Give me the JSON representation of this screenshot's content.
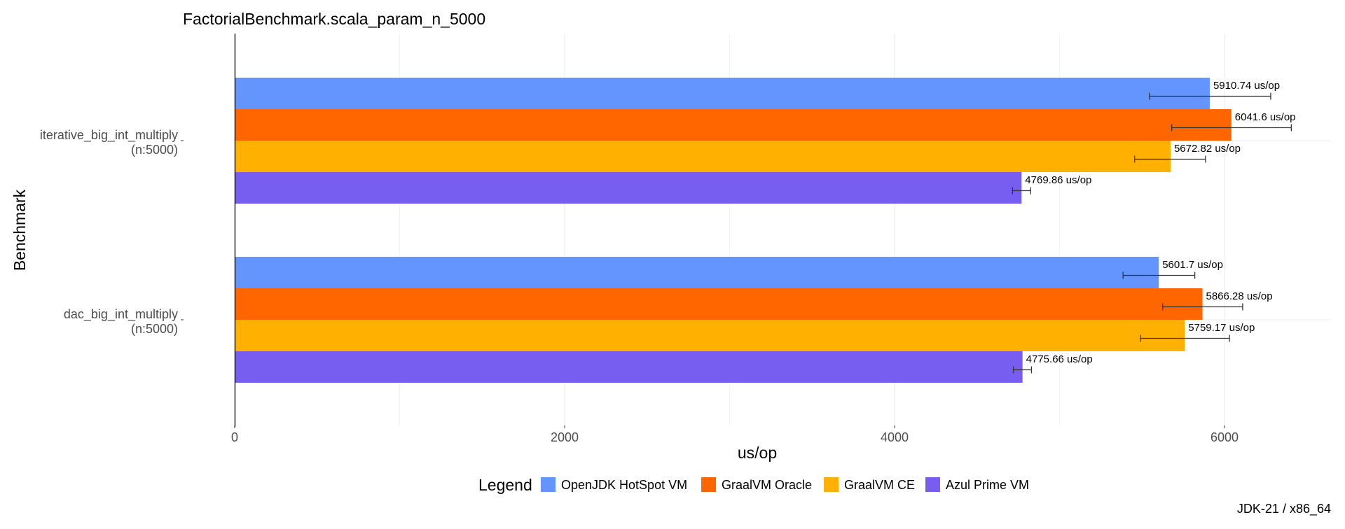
{
  "chart_data": {
    "type": "bar",
    "orientation": "horizontal",
    "title": "FactorialBenchmark.scala_param_n_5000",
    "xlabel": "us/op",
    "ylabel": "Benchmark",
    "caption": "JDK-21 / x86_64",
    "xlim": [
      0,
      6300
    ],
    "x_ticks": [
      0,
      2000,
      4000,
      6000
    ],
    "grid": true,
    "legend_title": "Legend",
    "legend_position": "bottom",
    "value_suffix": " us/op",
    "categories": [
      {
        "line1": "iterative_big_int_multiply",
        "line2": "(n:5000)"
      },
      {
        "line1": "dac_big_int_multiply",
        "line2": "(n:5000)"
      }
    ],
    "series": [
      {
        "name": "OpenJDK HotSpot VM",
        "color": "#6495FF",
        "values": [
          5910.74,
          5601.7
        ],
        "labels": [
          "5910.74",
          "5601.7"
        ],
        "err_low": [
          5545,
          5385
        ],
        "err_high": [
          6280,
          5820
        ]
      },
      {
        "name": "GraalVM Oracle",
        "color": "#FF6600",
        "values": [
          6041.6,
          5866.28
        ],
        "labels": [
          "6041.6",
          "5866.28"
        ],
        "err_low": [
          5680,
          5625
        ],
        "err_high": [
          6405,
          6110
        ]
      },
      {
        "name": "GraalVM CE",
        "color": "#FFB000",
        "values": [
          5672.82,
          5759.17
        ],
        "labels": [
          "5672.82",
          "5759.17"
        ],
        "err_low": [
          5455,
          5490
        ],
        "err_high": [
          5885,
          6030
        ]
      },
      {
        "name": "Azul Prime VM",
        "color": "#785EF0",
        "values": [
          4769.86,
          4775.66
        ],
        "labels": [
          "4769.86",
          "4775.66"
        ],
        "err_low": [
          4715,
          4720
        ],
        "err_high": [
          4825,
          4830
        ]
      }
    ]
  }
}
